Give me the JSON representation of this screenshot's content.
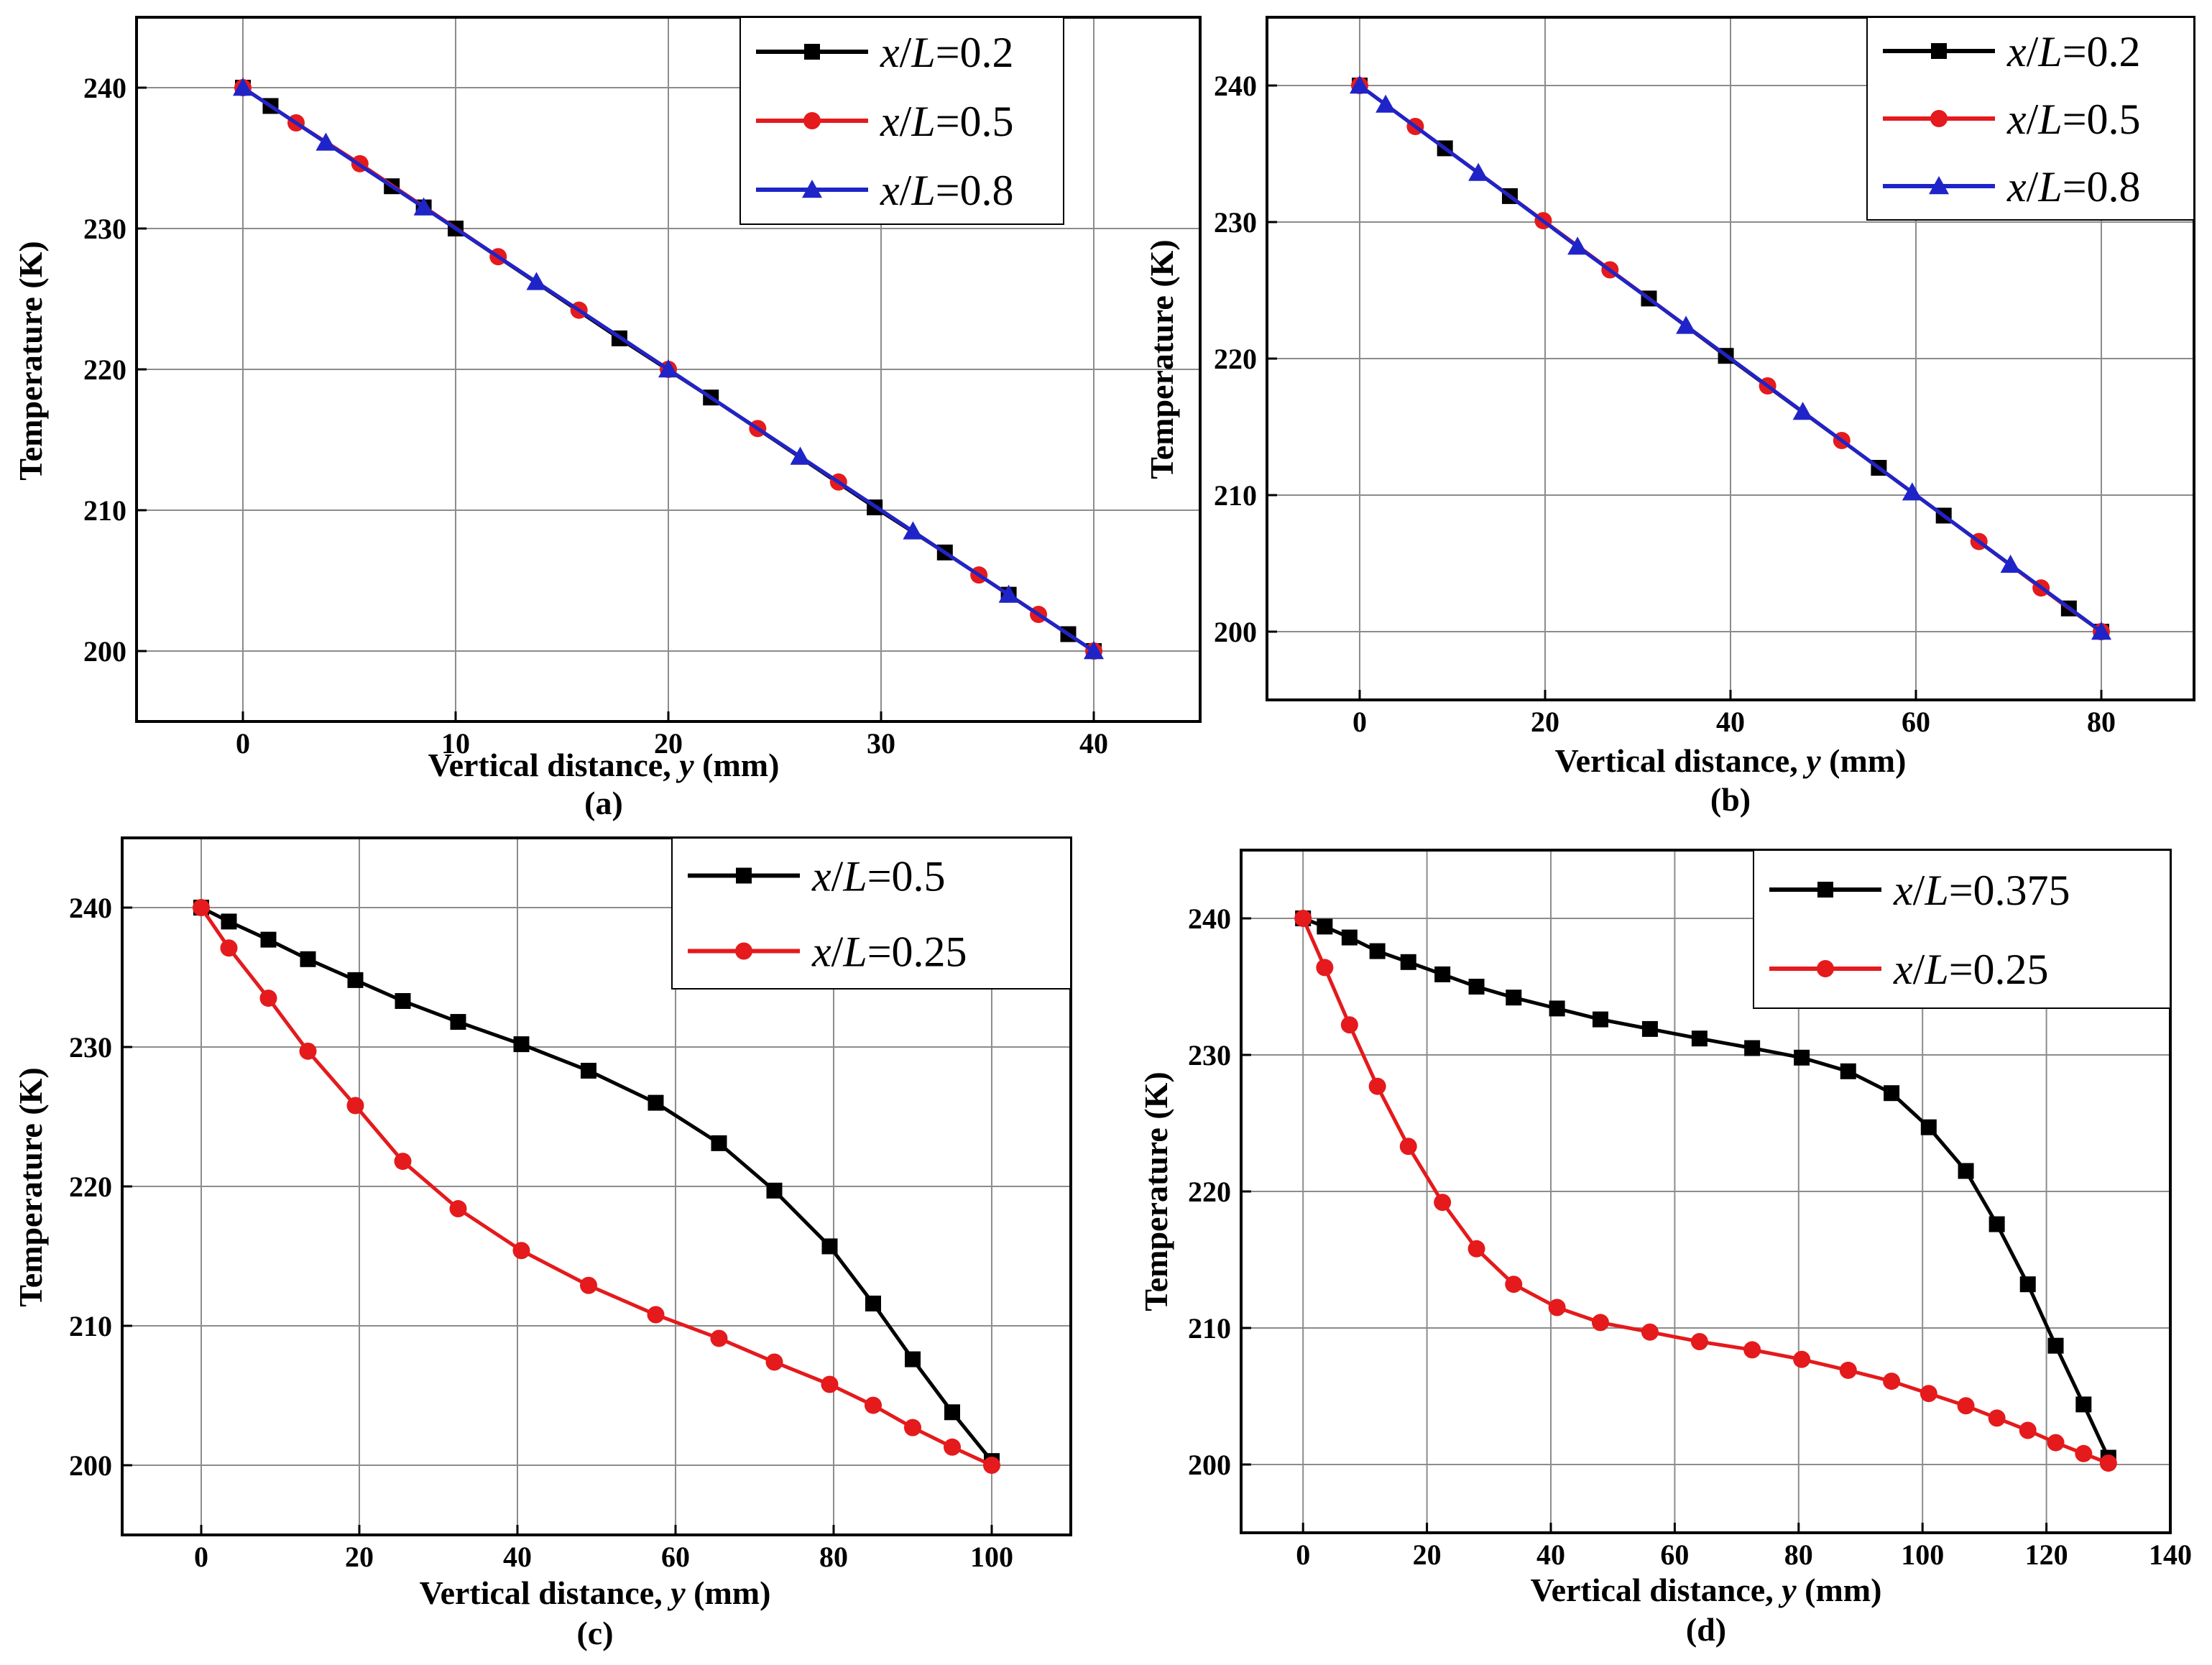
{
  "chart_data": [
    {
      "panel_label": "(a)",
      "type": "line",
      "xlabel_prefix": "Vertical distance, ",
      "xlabel_var": "y",
      "xlabel_suffix": " (mm)",
      "ylabel": "Temperature (K)",
      "xlim": [
        -5,
        45
      ],
      "ylim": [
        195,
        245
      ],
      "xticks": [
        0,
        10,
        20,
        30,
        40
      ],
      "yticks": [
        200,
        210,
        220,
        230,
        240
      ],
      "grid": true,
      "legend_position": "top-right",
      "series": [
        {
          "name_var": "x/L",
          "name_value": "=0.2",
          "color": "#000000",
          "marker": "square",
          "x": [
            0,
            1.3,
            7,
            8.5,
            10,
            17.7,
            22,
            29.7,
            33,
            36,
            38.8,
            40
          ],
          "y": [
            240,
            238.7,
            233,
            231.5,
            230,
            222.2,
            218,
            210.2,
            207,
            204,
            201.2,
            200
          ]
        },
        {
          "name_var": "x/L",
          "name_value": "=0.5",
          "color": "#e41a1c",
          "marker": "circle",
          "x": [
            0,
            2.5,
            5.5,
            12,
            15.8,
            20,
            24.2,
            28,
            34.6,
            37.4,
            40
          ],
          "y": [
            240,
            237.5,
            234.6,
            228,
            224.2,
            220,
            215.8,
            212,
            205.4,
            202.6,
            200
          ]
        },
        {
          "name_var": "x/L",
          "name_value": "=0.8",
          "color": "#1f24c8",
          "marker": "triangle",
          "x": [
            0,
            3.9,
            8.5,
            13.8,
            20,
            26.2,
            31.5,
            36,
            40
          ],
          "y": [
            240,
            236.1,
            231.5,
            226.2,
            220,
            213.8,
            208.5,
            204,
            200
          ]
        }
      ]
    },
    {
      "panel_label": "(b)",
      "type": "line",
      "xlabel_prefix": "Vertical distance, ",
      "xlabel_var": "y",
      "xlabel_suffix": " (mm)",
      "ylabel": "Temperature (K)",
      "xlim": [
        -10,
        90
      ],
      "ylim": [
        195,
        245
      ],
      "xticks": [
        0,
        20,
        40,
        60,
        80
      ],
      "yticks": [
        200,
        210,
        220,
        230,
        240
      ],
      "grid": true,
      "legend_position": "top-right",
      "series": [
        {
          "name_var": "x/L",
          "name_value": "=0.2",
          "color": "#000000",
          "marker": "square",
          "x": [
            0,
            9.2,
            16.2,
            31.2,
            39.5,
            56,
            63,
            76.5,
            80
          ],
          "y": [
            240,
            235.4,
            231.9,
            224.4,
            220.2,
            212,
            208.5,
            201.7,
            200
          ]
        },
        {
          "name_var": "x/L",
          "name_value": "=0.5",
          "color": "#e41a1c",
          "marker": "circle",
          "x": [
            0,
            6,
            19.8,
            27,
            44,
            52,
            66.8,
            73.5,
            80
          ],
          "y": [
            240,
            237,
            230.1,
            226.5,
            218,
            214,
            206.6,
            203.2,
            200
          ]
        },
        {
          "name_var": "x/L",
          "name_value": "=0.8",
          "color": "#1f24c8",
          "marker": "triangle",
          "x": [
            0,
            2.8,
            12.8,
            23.5,
            35.2,
            47.8,
            59.6,
            70.2,
            80
          ],
          "y": [
            240,
            238.6,
            233.6,
            228.2,
            222.4,
            216.1,
            210.2,
            204.9,
            200
          ]
        }
      ]
    },
    {
      "panel_label": "(c)",
      "type": "line",
      "xlabel_prefix": "Vertical distance, ",
      "xlabel_var": "y",
      "xlabel_suffix": " (mm)",
      "ylabel": "Temperature (K)",
      "xlim": [
        -10,
        110
      ],
      "ylim": [
        195,
        245
      ],
      "xticks": [
        0,
        20,
        40,
        60,
        80,
        100
      ],
      "yticks": [
        200,
        210,
        220,
        230,
        240
      ],
      "grid": true,
      "legend_position": "top-right",
      "series": [
        {
          "name_var": "x/L",
          "name_value": "=0.5",
          "color": "#000000",
          "marker": "square",
          "x": [
            0,
            3.5,
            8.5,
            13.5,
            19.5,
            25.5,
            32.5,
            40.5,
            49,
            57.5,
            65.5,
            72.5,
            79.5,
            85,
            90,
            95,
            100
          ],
          "y": [
            240,
            239,
            237.7,
            236.3,
            234.8,
            233.3,
            231.8,
            230.2,
            228.3,
            226,
            223.1,
            219.7,
            215.7,
            211.6,
            207.6,
            203.8,
            200.3
          ]
        },
        {
          "name_var": "x/L",
          "name_value": "=0.25",
          "color": "#e41a1c",
          "marker": "circle",
          "x": [
            0,
            3.5,
            8.5,
            13.5,
            19.5,
            25.5,
            32.5,
            40.5,
            49,
            57.5,
            65.5,
            72.5,
            79.5,
            85,
            90,
            95,
            100
          ],
          "y": [
            240,
            237.1,
            233.5,
            229.7,
            225.8,
            221.8,
            218.4,
            215.4,
            212.9,
            210.8,
            209.1,
            207.4,
            205.8,
            204.3,
            202.7,
            201.3,
            200
          ]
        }
      ]
    },
    {
      "panel_label": "(d)",
      "type": "line",
      "xlabel_prefix": "Vertical distance, ",
      "xlabel_var": "y",
      "xlabel_suffix": " (mm)",
      "ylabel": "Temperature (K)",
      "xlim": [
        -10,
        140
      ],
      "ylim": [
        195,
        245
      ],
      "xticks": [
        0,
        20,
        40,
        60,
        80,
        100,
        120,
        140
      ],
      "yticks": [
        200,
        210,
        220,
        230,
        240
      ],
      "grid": true,
      "legend_position": "top-right",
      "series": [
        {
          "name_var": "x/L",
          "name_value": "=0.375",
          "color": "#000000",
          "marker": "square",
          "x": [
            0,
            3.5,
            7.5,
            12,
            17,
            22.5,
            28,
            34,
            41,
            48,
            56,
            64,
            72.5,
            80.5,
            88,
            95,
            101,
            107,
            112,
            117,
            121.5,
            126,
            130
          ],
          "y": [
            240,
            239.4,
            238.6,
            237.6,
            236.8,
            235.9,
            235,
            234.2,
            233.4,
            232.6,
            231.9,
            231.2,
            230.5,
            229.8,
            228.8,
            227.2,
            224.7,
            221.5,
            217.6,
            213.2,
            208.7,
            204.4,
            200.5
          ]
        },
        {
          "name_var": "x/L",
          "name_value": "=0.25",
          "color": "#e41a1c",
          "marker": "circle",
          "x": [
            0,
            3.5,
            7.5,
            12,
            17,
            22.5,
            28,
            34,
            41,
            48,
            56,
            64,
            72.5,
            80.5,
            88,
            95,
            101,
            107,
            112,
            117,
            121.5,
            126,
            130
          ],
          "y": [
            240,
            236.4,
            232.2,
            227.7,
            223.3,
            219.2,
            215.8,
            213.2,
            211.5,
            210.4,
            209.7,
            209,
            208.4,
            207.7,
            206.9,
            206.1,
            205.2,
            204.3,
            203.4,
            202.5,
            201.6,
            200.8,
            200.1
          ]
        }
      ]
    }
  ]
}
